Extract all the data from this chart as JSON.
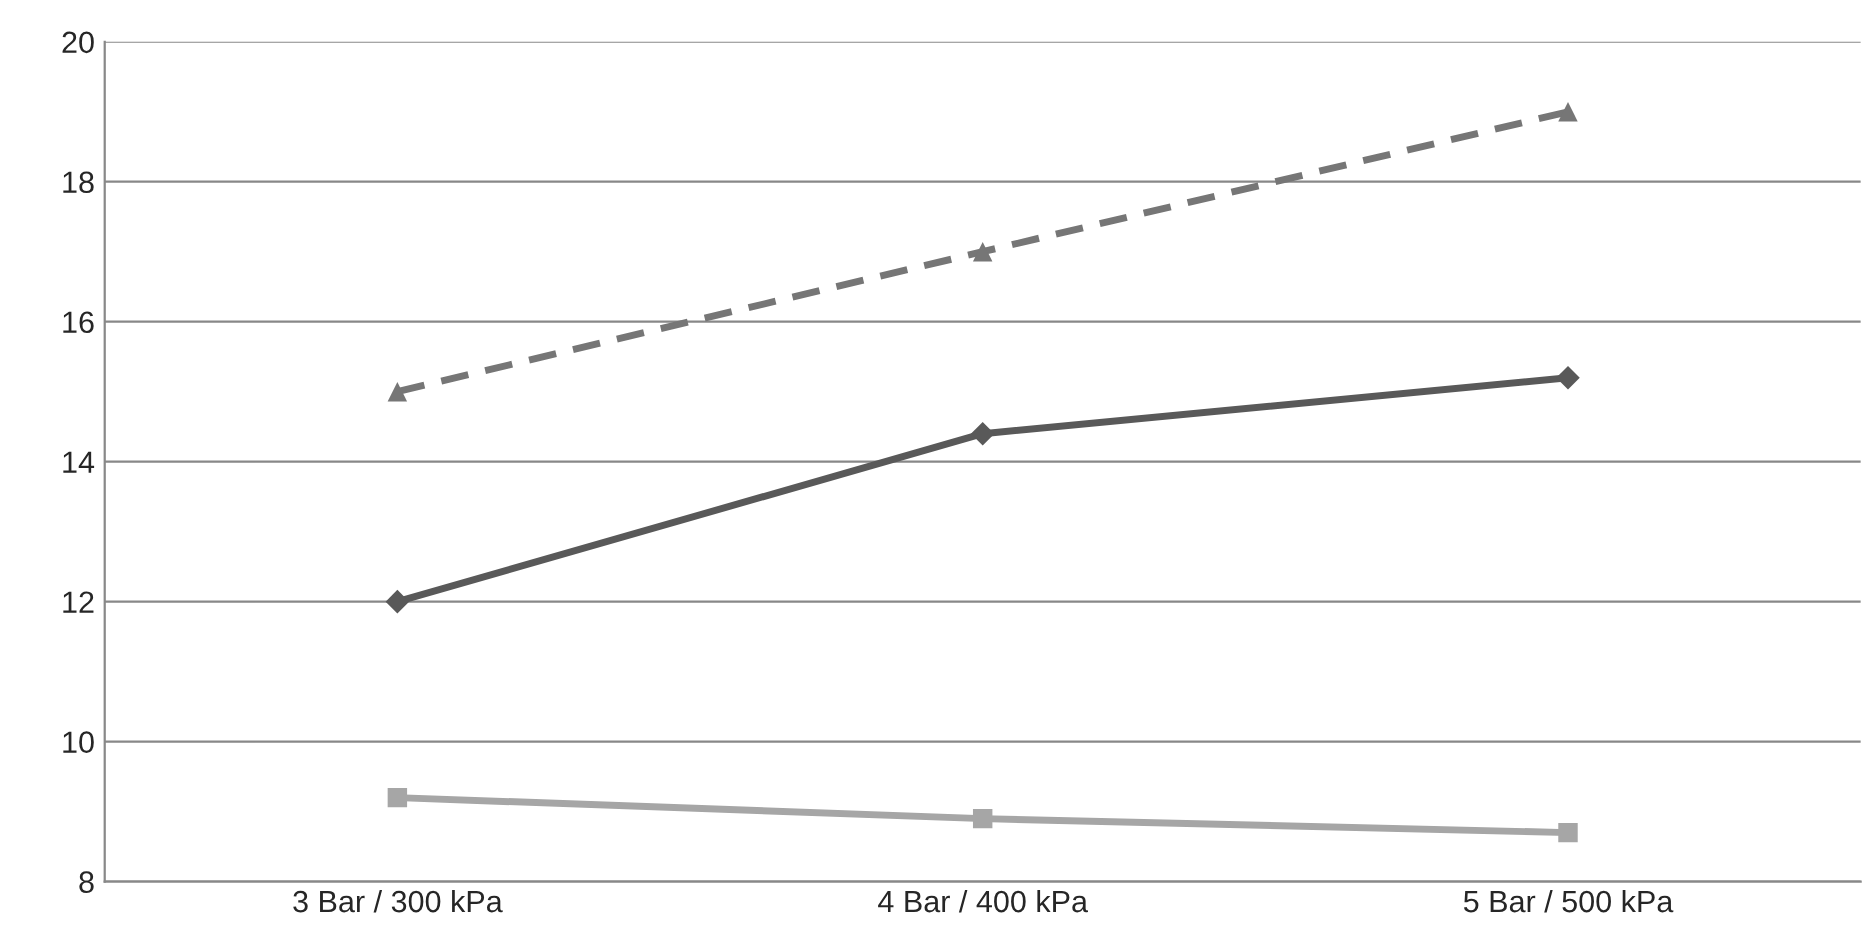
{
  "chart_data": {
    "type": "line",
    "categories": [
      "3 Bar / 300 kPa",
      "4 Bar / 400 kPa",
      "5 Bar / 500 kPa"
    ],
    "series": [
      {
        "color": "#767676",
        "values": [
          15,
          17,
          19
        ],
        "marker": "triangle",
        "line_style": "dashed"
      },
      {
        "color": "#595959",
        "values": [
          12,
          14.4,
          15.2
        ],
        "marker": "diamond",
        "line_style": "solid"
      },
      {
        "color": "#a6a6a6",
        "values": [
          9.2,
          8.9,
          8.7
        ],
        "marker": "square",
        "line_style": "solid"
      }
    ],
    "ylim": [
      8,
      20
    ],
    "yticks": [
      8,
      10,
      12,
      14,
      16,
      18,
      20
    ],
    "grid": "y",
    "legend": false
  }
}
